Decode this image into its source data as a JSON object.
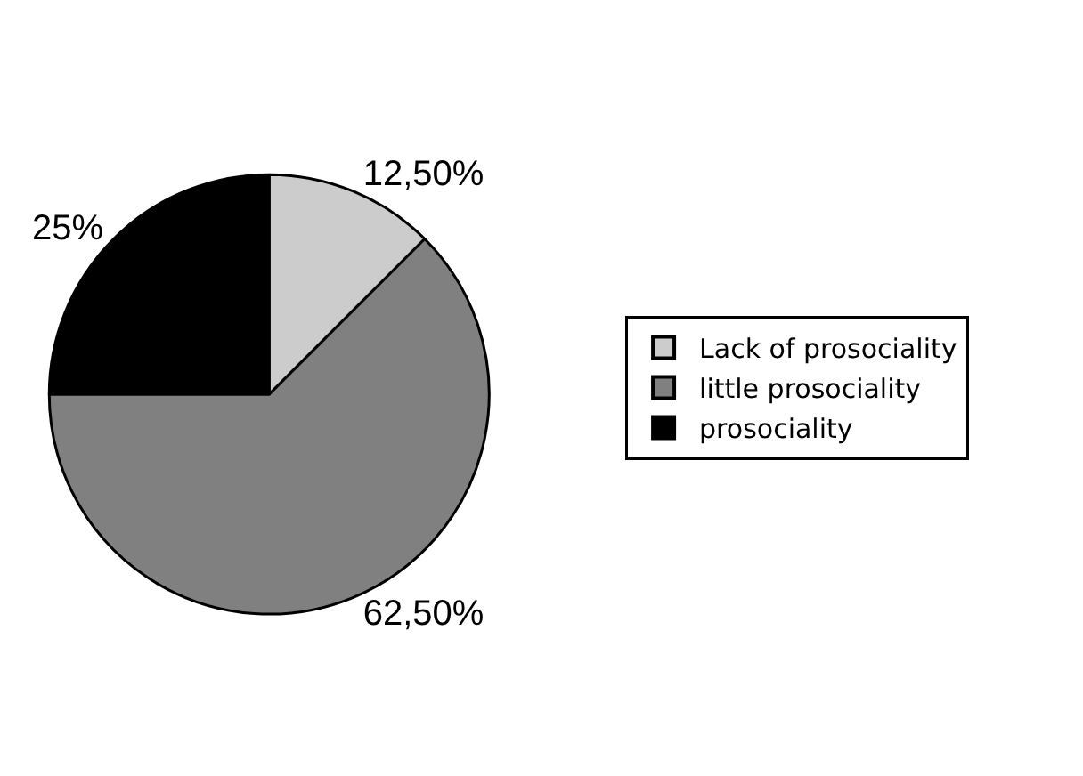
{
  "chart_data": {
    "type": "pie",
    "categories": [
      "Lack of prosociality",
      "little prosociality",
      "prosociality"
    ],
    "values": [
      12.5,
      62.5,
      25
    ],
    "colors": [
      "#cccccc",
      "#808080",
      "#000000"
    ],
    "value_labels": [
      "12,50%",
      "62,50%",
      "25%"
    ],
    "legend": "right"
  }
}
